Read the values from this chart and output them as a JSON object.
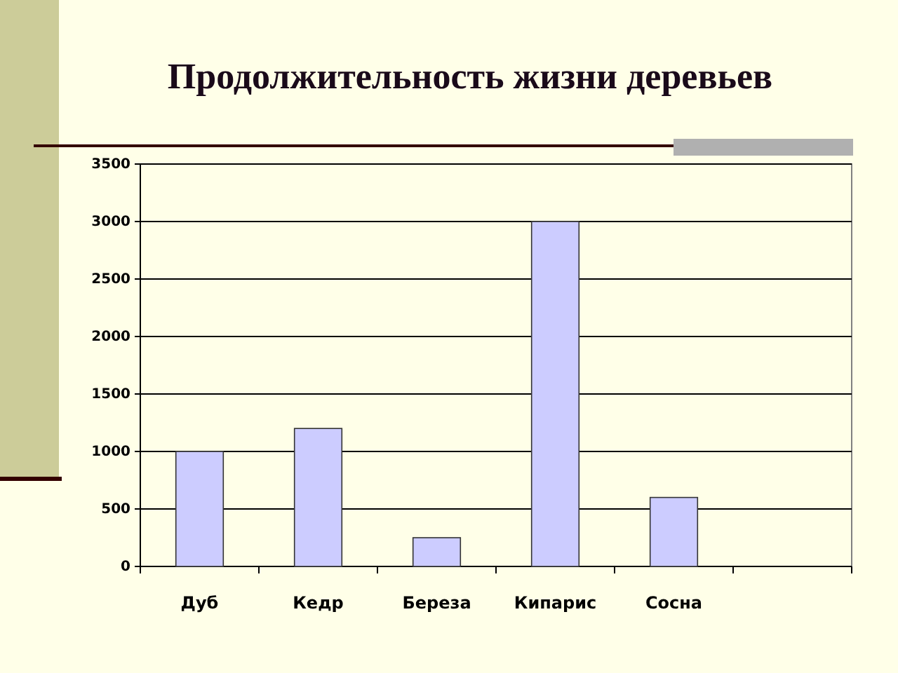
{
  "chart_data": {
    "type": "bar",
    "title": "Продолжительность жизни деревьев",
    "categories": [
      "Дуб",
      "Кедр",
      "Береза",
      "Кипарис",
      "Сосна",
      null
    ],
    "values": [
      1000,
      1200,
      250,
      3000,
      600,
      null
    ],
    "color": "#ccccff",
    "ylim": [
      0,
      3500
    ],
    "yticks": [
      0,
      500,
      1000,
      1500,
      2000,
      2500,
      3000,
      3500
    ],
    "grid": "y"
  }
}
